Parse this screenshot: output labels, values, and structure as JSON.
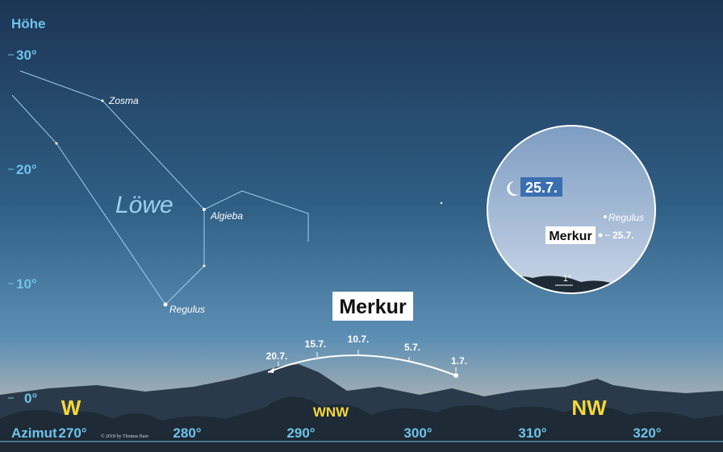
{
  "axes": {
    "y_title": "Höhe",
    "y_ticks": [
      "30°",
      "20°",
      "10°",
      "0°"
    ],
    "x_title": "Azimut",
    "x_ticks": [
      "270°",
      "280°",
      "290°",
      "300°",
      "310°",
      "320°"
    ]
  },
  "directions": [
    "W",
    "WNW",
    "NW"
  ],
  "constellation": {
    "name": "Löwe",
    "stars": [
      "Zosma",
      "Algieba",
      "Regulus"
    ]
  },
  "planet": {
    "label": "Merkur",
    "dates": [
      "20.7.",
      "15.7.",
      "10.7.",
      "5.7.",
      "1.7."
    ]
  },
  "inset": {
    "date": "25.7.",
    "planet": "Merkur",
    "planet_date": "25.7.",
    "star": "Regulus",
    "scale": "1°"
  },
  "credit": "© 2018 by Thomas Baer"
}
